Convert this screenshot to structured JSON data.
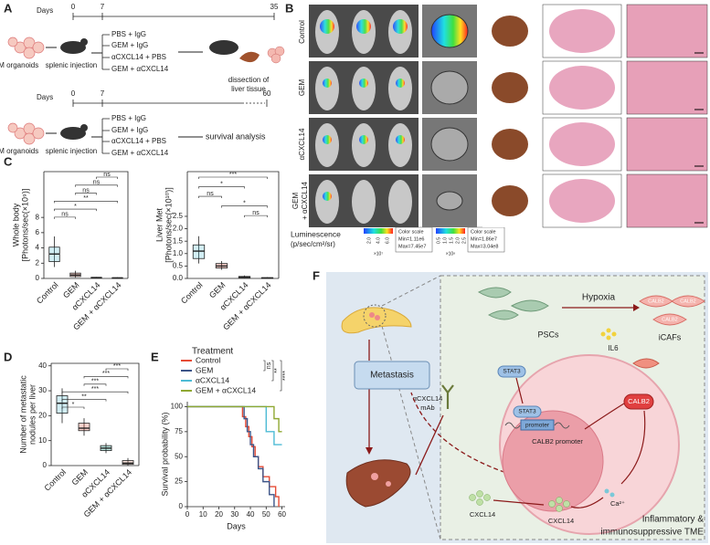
{
  "panels": {
    "A": {
      "label": "A",
      "top": {
        "days_label": "Days",
        "ticks": [
          "0",
          "7",
          "35"
        ],
        "organoids": "LM organoids",
        "injection": "splenic injection",
        "treatments": [
          "PBS + IgG",
          "GEM + IgG",
          "αCXCL14 + PBS",
          "GEM + αCXCL14"
        ],
        "outcome": [
          "dissection of",
          "liver tissue"
        ]
      },
      "bottom": {
        "days_label": "Days",
        "ticks": [
          "0",
          "7",
          "60"
        ],
        "organoids": "LM organoids",
        "injection": "splenic injection",
        "treatments": [
          "PBS + IgG",
          "GEM + IgG",
          "αCXCL14 + PBS",
          "GEM + αCXCL14"
        ],
        "outcome": "survival analysis"
      }
    },
    "B": {
      "label": "B",
      "rows": [
        "Control",
        "GEM",
        "αCXCL14",
        [
          "GEM",
          "+ αCXCL14"
        ]
      ],
      "luminescence": [
        "Luminescence",
        "(p/sec/cm²/sr)"
      ],
      "scale1": {
        "ticks": [
          "2.0",
          "4.0",
          "6.0"
        ],
        "multiplier": "×10⁷",
        "box": [
          "Color scale",
          "Min=1.11e6",
          "Max=7.45e7"
        ]
      },
      "scale2": {
        "ticks": [
          "0.5",
          "1.0",
          "1.5",
          "2.0",
          "2.5"
        ],
        "multiplier": "×10⁸",
        "box": [
          "Color scale",
          "Min=1.86e7",
          "Max=3.04e8"
        ]
      }
    },
    "C": {
      "label": "C"
    },
    "D": {
      "label": "D"
    },
    "E": {
      "label": "E"
    },
    "F": {
      "label": "F",
      "hypoxia": "Hypoxia",
      "pscs": "PSCs",
      "icafs": "iCAFs",
      "icaf_markers": [
        "CALB2",
        "CALB2",
        "CALB2"
      ],
      "il6": "IL6",
      "stat3_cyto": "STAT3",
      "stat3_nuc": "STAT3",
      "promoter": "promoter",
      "calb2_promoter": "CALB2 promoter",
      "calb2": "CALB2",
      "calcium": "Ca²⁺",
      "cxcl14_cell": "CXCL14",
      "cxcl14_out": "CXCL14",
      "antibody": [
        "αCXCL14",
        "mAb"
      ],
      "metastasis": "Metastasis",
      "tme": [
        "Inflammatory &",
        "immunosuppressive TME"
      ]
    }
  },
  "chart_data": [
    {
      "type": "box",
      "ylabel": [
        "Whole body",
        "[Photons/sec(×10⁹)]"
      ],
      "categories": [
        "Control",
        "GEM",
        "αCXCL14",
        "GEM + αCXCL14"
      ],
      "colors": [
        "#4dbbd5",
        "#e64b35",
        "#00a087",
        "#f39b7f"
      ],
      "boxes": [
        {
          "min": 1.5,
          "q1": 2.2,
          "median": 3.2,
          "q3": 4.1,
          "max": 5.5
        },
        {
          "min": 0.1,
          "q1": 0.25,
          "median": 0.45,
          "q3": 0.7,
          "max": 1.0
        },
        {
          "min": 0.02,
          "q1": 0.05,
          "median": 0.1,
          "q3": 0.15,
          "max": 0.2
        },
        {
          "min": 0.01,
          "q1": 0.03,
          "median": 0.06,
          "q3": 0.1,
          "max": 0.15
        }
      ],
      "ylim": [
        0,
        14
      ],
      "yticks": [
        0,
        2,
        4,
        6,
        8
      ],
      "comparisons": [
        {
          "label": "ns",
          "groups": [
            "αCXCL14",
            "GEM + αCXCL14"
          ]
        },
        {
          "label": "ns",
          "groups": [
            "GEM",
            "GEM + αCXCL14"
          ]
        },
        {
          "label": "ns",
          "groups": [
            "GEM",
            "αCXCL14"
          ]
        },
        {
          "label": "**",
          "groups": [
            "Control",
            "GEM + αCXCL14"
          ]
        },
        {
          "label": "*",
          "groups": [
            "Control",
            "αCXCL14"
          ]
        },
        {
          "label": "ns",
          "groups": [
            "Control",
            "GEM"
          ]
        }
      ]
    },
    {
      "type": "box",
      "ylabel": [
        "Liver Met",
        "[Photons/sec(×10¹⁰)]"
      ],
      "categories": [
        "Control",
        "GEM",
        "αCXCL14",
        "GEM + αCXCL14"
      ],
      "colors": [
        "#4dbbd5",
        "#e64b35",
        "#00a087",
        "#f39b7f"
      ],
      "boxes": [
        {
          "min": 0.6,
          "q1": 0.8,
          "median": 1.1,
          "q3": 1.35,
          "max": 1.7
        },
        {
          "min": 0.35,
          "q1": 0.42,
          "median": 0.5,
          "q3": 0.6,
          "max": 0.7
        },
        {
          "min": 0.01,
          "q1": 0.03,
          "median": 0.05,
          "q3": 0.08,
          "max": 0.12
        },
        {
          "min": 0.0,
          "q1": 0.01,
          "median": 0.02,
          "q3": 0.03,
          "max": 0.05
        }
      ],
      "ylim": [
        0,
        4.3
      ],
      "yticks": [
        {
          "value": 0,
          "label": "0.0"
        },
        0.5,
        {
          "value": 1,
          "label": "1.0"
        },
        1.5,
        {
          "value": 2,
          "label": "2.0"
        },
        2.5
      ],
      "comparisons": [
        {
          "label": "***",
          "groups": [
            "Control",
            "GEM + αCXCL14"
          ]
        },
        {
          "label": "*",
          "groups": [
            "Control",
            "αCXCL14"
          ]
        },
        {
          "label": "ns",
          "groups": [
            "Control",
            "GEM"
          ]
        },
        {
          "label": "*",
          "groups": [
            "GEM",
            "GEM + αCXCL14"
          ]
        },
        {
          "label": "ns",
          "groups": [
            "αCXCL14",
            "GEM + αCXCL14"
          ]
        }
      ]
    },
    {
      "type": "box",
      "ylabel": [
        "Number of metastatic",
        "nodules per liver"
      ],
      "categories": [
        "Control",
        "GEM",
        "αCXCL14",
        "GEM + αCXCL14"
      ],
      "colors": [
        "#4dbbd5",
        "#e64b35",
        "#00a087",
        "#f39b7f"
      ],
      "boxes": [
        {
          "min": 17,
          "q1": 21,
          "median": 25,
          "q3": 28,
          "max": 31
        },
        {
          "min": 12,
          "q1": 14,
          "median": 15,
          "q3": 17,
          "max": 19
        },
        {
          "min": 5,
          "q1": 6,
          "median": 7,
          "q3": 8,
          "max": 9
        },
        {
          "min": 0,
          "q1": 0.5,
          "median": 1,
          "q3": 2,
          "max": 3
        }
      ],
      "ylim": [
        0,
        41
      ],
      "yticks": [
        0,
        10,
        20,
        30,
        40
      ],
      "comparisons": [
        {
          "label": "***",
          "groups": [
            "αCXCL14",
            "GEM + αCXCL14"
          ]
        },
        {
          "label": "***",
          "groups": [
            "GEM",
            "GEM + αCXCL14"
          ]
        },
        {
          "label": "***",
          "groups": [
            "GEM",
            "αCXCL14"
          ]
        },
        {
          "label": "***",
          "groups": [
            "Control",
            "GEM + αCXCL14"
          ]
        },
        {
          "label": "**",
          "groups": [
            "Control",
            "αCXCL14"
          ]
        },
        {
          "label": "*",
          "groups": [
            "Control",
            "GEM"
          ]
        }
      ]
    },
    {
      "type": "line",
      "step": true,
      "xlabel": "Days",
      "ylabel": "Survival probability (%)",
      "legend_title": "Treatment",
      "xlim": [
        0,
        62
      ],
      "xticks": [
        0,
        10,
        20,
        30,
        40,
        50,
        60
      ],
      "ylim": [
        0,
        105
      ],
      "yticks": [
        0,
        25,
        50,
        75,
        100
      ],
      "series": [
        {
          "name": "Control",
          "color": "#e64b35",
          "x": [
            0,
            35,
            37,
            39,
            41,
            43,
            45,
            48,
            52,
            56,
            58
          ],
          "values": [
            100,
            90,
            80,
            70,
            60,
            50,
            40,
            30,
            20,
            10,
            0
          ]
        },
        {
          "name": "GEM",
          "color": "#3c5488",
          "x": [
            0,
            36,
            38,
            40,
            42,
            45,
            48,
            52,
            55
          ],
          "values": [
            100,
            88,
            75,
            62,
            50,
            38,
            25,
            12,
            0
          ]
        },
        {
          "name": "αCXCL14",
          "color": "#4dbbd5",
          "x": [
            0,
            50,
            55,
            60
          ],
          "values": [
            100,
            75,
            62,
            62
          ]
        },
        {
          "name": "GEM + αCXCL14",
          "color": "#8fa832",
          "x": [
            0,
            55,
            58,
            60
          ],
          "values": [
            100,
            88,
            75,
            75
          ]
        }
      ],
      "comparisons": [
        {
          "label": "ns",
          "groups": [
            "Control",
            "GEM"
          ]
        },
        {
          "label": "**",
          "groups": [
            "Control",
            "αCXCL14"
          ]
        },
        {
          "label": "****",
          "groups": [
            "Control",
            "GEM + αCXCL14"
          ]
        }
      ]
    }
  ]
}
